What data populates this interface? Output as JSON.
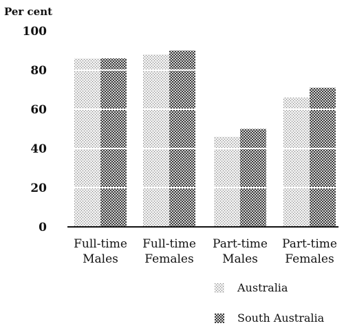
{
  "chart_data": {
    "type": "bar",
    "ylabel": "Per cent",
    "ylim": [
      0,
      100
    ],
    "yticks": [
      0,
      20,
      40,
      60,
      80,
      100
    ],
    "grid": true,
    "legend_position": "bottom-right",
    "categories": [
      [
        "Full-time",
        "Males"
      ],
      [
        "Full-time",
        "Females"
      ],
      [
        "Part-time",
        "Males"
      ],
      [
        "Part-time",
        "Females"
      ]
    ],
    "series": [
      {
        "name": "Australia",
        "values": [
          86,
          88,
          46,
          66
        ],
        "color": "#c8c8c8"
      },
      {
        "name": "South Australia",
        "values": [
          86,
          90,
          50,
          71
        ],
        "color": "#6e6e6e"
      }
    ]
  }
}
